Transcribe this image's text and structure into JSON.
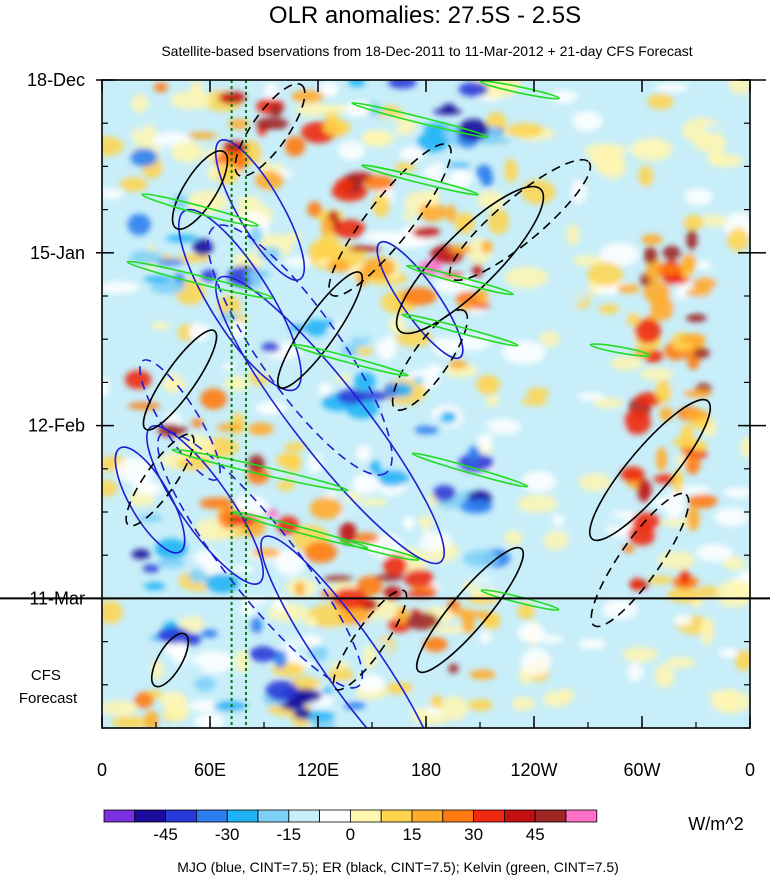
{
  "chart_data": {
    "type": "heatmap",
    "title": "OLR anomalies: 27.5S - 2.5S",
    "subtitle": "Satellite-based bservations from 18-Dec-2011 to 11-Mar-2012 + 21-day CFS Forecast",
    "x_ticks": [
      "0",
      "60E",
      "120E",
      "180",
      "120W",
      "60W",
      "0"
    ],
    "x_range": [
      0,
      360
    ],
    "y_ticks": [
      "18-Dec",
      "15-Jan",
      "12-Feb",
      "11-Mar"
    ],
    "y_dates": [
      "2011-12-18",
      "2012-01-15",
      "2012-02-12",
      "2012-03-11"
    ],
    "y_range": [
      "2011-12-18",
      "2012-04-01"
    ],
    "forecast_label": [
      "CFS",
      "Forecast"
    ],
    "observation_end": "2012-03-11",
    "colorbar": {
      "unit": "W/m^2",
      "tick_labels": [
        "-45",
        "-30",
        "-15",
        "0",
        "15",
        "30",
        "45"
      ],
      "levels": [
        -52.5,
        -45,
        -37.5,
        -30,
        -22.5,
        -15,
        -7.5,
        0,
        7.5,
        15,
        22.5,
        30,
        37.5,
        45,
        52.5
      ],
      "colors": [
        "#7b2fe0",
        "#1a0c9a",
        "#2a3ad8",
        "#2d7ff0",
        "#1fb2f5",
        "#7fd0f7",
        "#c8eef9",
        "#ffffff",
        "#fff6b0",
        "#ffd34a",
        "#ffab2a",
        "#ff7a12",
        "#ee2a10",
        "#c21010",
        "#a02525",
        "#ff6fc8"
      ]
    },
    "footer": "MJO (blue, CINT=7.5); ER (black, CINT=7.5); Kelvin (green, CINT=7.5)",
    "overlays": [
      {
        "name": "MJO",
        "color": "#1f1fd0"
      },
      {
        "name": "ER",
        "color": "#000000"
      },
      {
        "name": "Kelvin",
        "color": "#22dd22"
      }
    ],
    "reference_longitudes": [
      72,
      80
    ]
  }
}
